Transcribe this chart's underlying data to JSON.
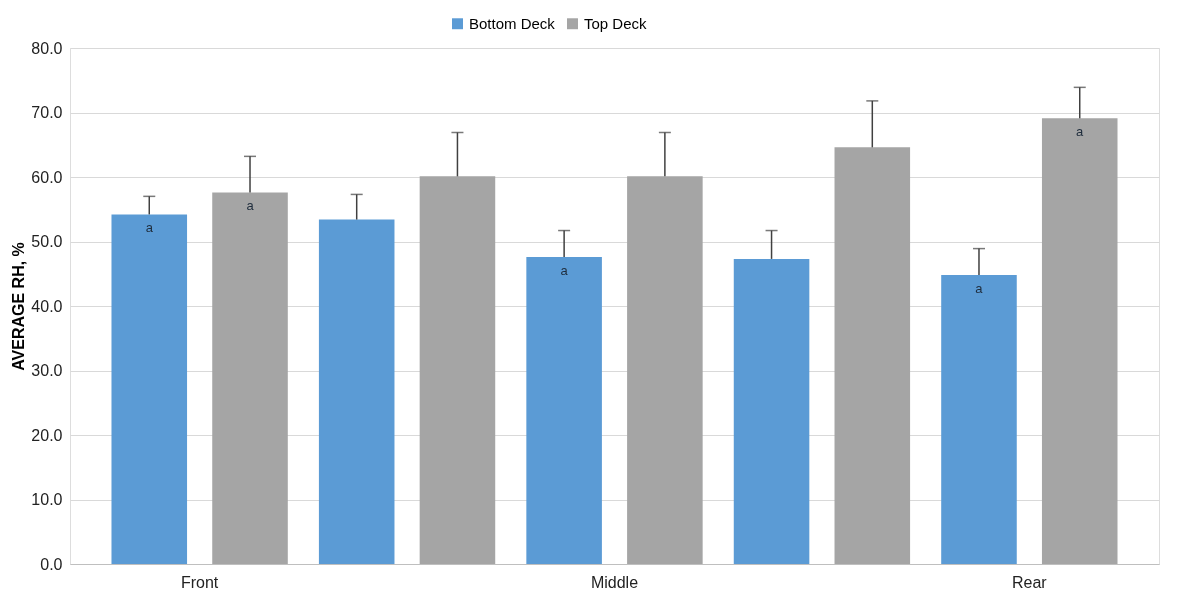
{
  "chart_data": {
    "type": "bar",
    "ylabel": "AVERAGE RH, %",
    "categories": [
      "Front",
      null,
      "Middle",
      null,
      "Rear"
    ],
    "series": [
      {
        "name": "Bottom Deck",
        "color": "#5b9bd5",
        "values": [
          54.2,
          53.4,
          47.6,
          47.3,
          44.8
        ],
        "errors": [
          [
            54.2,
            57.0
          ],
          [
            53.4,
            57.3
          ],
          [
            47.6,
            51.7
          ],
          [
            47.3,
            51.7
          ],
          [
            44.8,
            48.9
          ]
        ],
        "value_labels": [
          "a",
          null,
          "a",
          null,
          "a"
        ]
      },
      {
        "name": "Top Deck",
        "color": "#a5a5a5",
        "values": [
          57.6,
          60.1,
          60.1,
          64.6,
          69.1
        ],
        "errors": [
          [
            57.6,
            63.2
          ],
          [
            60.1,
            66.9
          ],
          [
            60.1,
            66.9
          ],
          [
            64.6,
            71.8
          ],
          [
            69.1,
            73.9
          ]
        ],
        "value_labels": [
          "a",
          null,
          null,
          null,
          "a"
        ]
      }
    ],
    "ylim": [
      0,
      80
    ],
    "yticks": [
      {
        "value": 0,
        "label": "0.0"
      },
      {
        "value": 10,
        "label": "10.0"
      },
      {
        "value": 20,
        "label": "20.0"
      },
      {
        "value": 30,
        "label": "30.0"
      },
      {
        "value": 40,
        "label": "40.0"
      },
      {
        "value": 50,
        "label": "50.0"
      },
      {
        "value": 60,
        "label": "60.0"
      },
      {
        "value": 70,
        "label": "70.0"
      },
      {
        "value": 80,
        "label": "80.0"
      }
    ],
    "grid": "y",
    "legend": "top"
  }
}
